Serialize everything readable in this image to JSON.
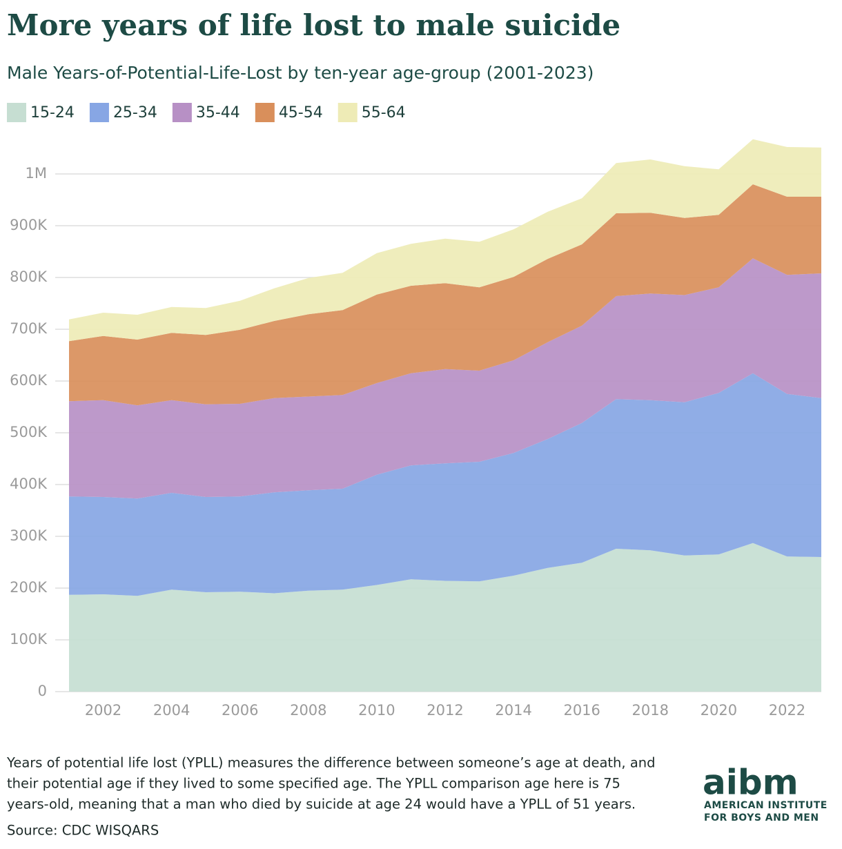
{
  "chart_data": {
    "type": "stacked_area",
    "title": "More years of life lost to male suicide",
    "subtitle": "Male Years-of-Potential-Life-Lost by ten-year age-group (2001-2023)",
    "x": [
      2001,
      2002,
      2003,
      2004,
      2005,
      2006,
      2007,
      2008,
      2009,
      2010,
      2011,
      2012,
      2013,
      2014,
      2015,
      2016,
      2017,
      2018,
      2019,
      2020,
      2021,
      2022,
      2023
    ],
    "xlim": [
      2001,
      2023
    ],
    "xticks": [
      2002,
      2004,
      2006,
      2008,
      2010,
      2012,
      2014,
      2016,
      2018,
      2020,
      2022
    ],
    "ylim": [
      0,
      1070000
    ],
    "yticks": [
      0,
      {
        "value": 100000,
        "label": "100K"
      },
      {
        "value": 200000,
        "label": "200K"
      },
      {
        "value": 300000,
        "label": "300K"
      },
      {
        "value": 400000,
        "label": "400K"
      },
      {
        "value": 500000,
        "label": "500K"
      },
      {
        "value": 600000,
        "label": "600K"
      },
      {
        "value": 700000,
        "label": "700K"
      },
      {
        "value": 800000,
        "label": "800K"
      },
      {
        "value": 900000,
        "label": "900K"
      },
      {
        "value": 1000000,
        "label": "1M"
      }
    ],
    "grid": true,
    "legend": "top-left",
    "series": [
      {
        "name": "15-24",
        "color": "#c6ded2",
        "values": [
          187000,
          188000,
          185000,
          197000,
          192000,
          193000,
          190000,
          195000,
          197000,
          206000,
          217000,
          214000,
          213000,
          224000,
          239000,
          249000,
          276000,
          273000,
          263000,
          265000,
          287000,
          261000,
          260000
        ]
      },
      {
        "name": "25-34",
        "color": "#87a6e4",
        "values": [
          190000,
          188000,
          188000,
          187000,
          184000,
          184000,
          195000,
          194000,
          195000,
          213000,
          220000,
          227000,
          231000,
          237000,
          249000,
          270000,
          289000,
          290000,
          296000,
          312000,
          328000,
          314000,
          307000
        ]
      },
      {
        "name": "35-44",
        "color": "#b790c5",
        "values": [
          184000,
          187000,
          180000,
          179000,
          179000,
          179000,
          182000,
          181000,
          181000,
          177000,
          178000,
          182000,
          176000,
          179000,
          187000,
          188000,
          199000,
          206000,
          207000,
          204000,
          222000,
          230000,
          241000
        ]
      },
      {
        "name": "45-54",
        "color": "#d98f5b",
        "values": [
          116000,
          124000,
          127000,
          130000,
          134000,
          143000,
          149000,
          159000,
          164000,
          171000,
          169000,
          166000,
          161000,
          161000,
          161000,
          157000,
          160000,
          156000,
          149000,
          140000,
          143000,
          151000,
          148000
        ]
      },
      {
        "name": "55-64",
        "color": "#eeebb6",
        "values": [
          42000,
          45000,
          48000,
          50000,
          52000,
          56000,
          63000,
          70000,
          72000,
          80000,
          81000,
          86000,
          88000,
          92000,
          91000,
          89000,
          97000,
          103000,
          100000,
          88000,
          87000,
          96000,
          95000
        ]
      }
    ]
  },
  "footer": {
    "note": [
      "Years of potential life lost (YPLL) measures the difference between someone’s age at death, and",
      "their potential age if they lived to some specified age. The YPLL comparison age here is 75",
      "years-old, meaning that a man who died by suicide at age 24 would have a YPLL of 51 years."
    ],
    "source": "Source: CDC WISQARS",
    "logo": "aibm",
    "logo_line1": "AMERICAN INSTITUTE",
    "logo_line2": "FOR BOYS AND MEN"
  }
}
